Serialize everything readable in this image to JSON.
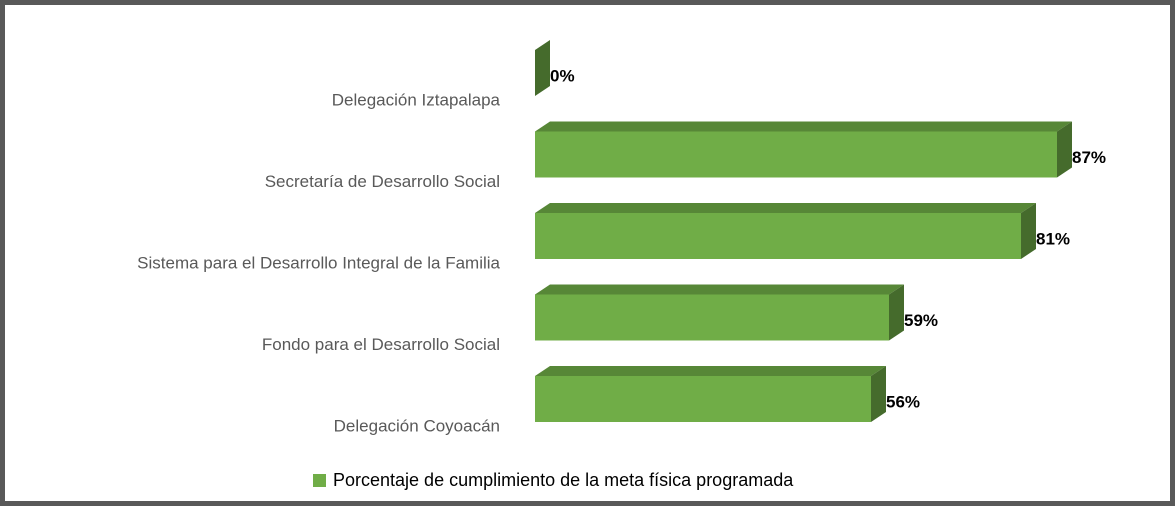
{
  "chart_data": {
    "type": "bar3d_horizontal",
    "categories": [
      "Delegación Iztapalapa",
      "Secretaría de Desarrollo Social",
      "Sistema para el Desarrollo Integral de la Familia",
      "Fondo para el Desarrollo Social",
      "Delegación Coyoacán"
    ],
    "series": [
      {
        "name": "Porcentaje de cumplimiento de la meta física programada",
        "color": "#70ad47",
        "values": [
          0,
          87,
          81,
          59,
          56
        ],
        "value_labels": [
          "0%",
          "87%",
          "81%",
          "59%",
          "56%"
        ]
      }
    ],
    "xlim": [
      0,
      100
    ],
    "legend": "bottom"
  }
}
